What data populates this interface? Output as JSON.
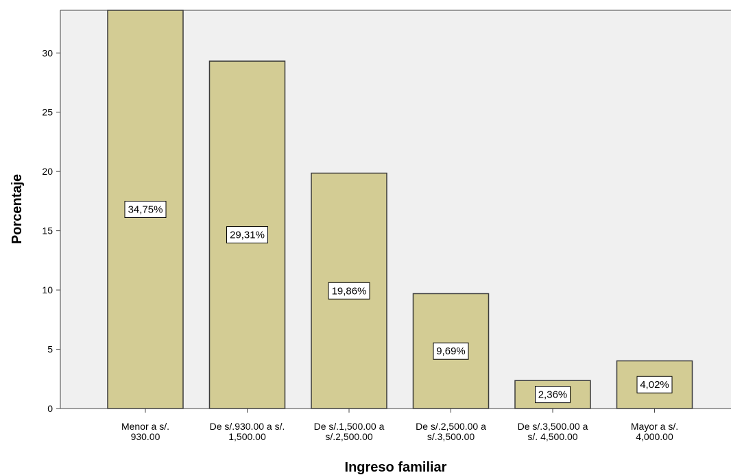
{
  "chart_data": {
    "type": "bar",
    "xlabel": "Ingreso familiar",
    "ylabel": "Porcentaje",
    "categories": [
      [
        "Menor a s/.",
        "930.00"
      ],
      [
        "De s/.930.00 a s/.",
        "1,500.00"
      ],
      [
        "De s/.1,500.00 a",
        "s/.2,500.00"
      ],
      [
        "De s/.2,500.00 a",
        "s/.3,500.00"
      ],
      [
        "De s/.3,500.00 a",
        "s/. 4,500.00"
      ],
      [
        "Mayor a s/.",
        "4,000.00"
      ]
    ],
    "values": [
      34.75,
      29.31,
      19.86,
      9.69,
      2.36,
      4.02
    ],
    "data_labels": [
      "34,75%",
      "29,31%",
      "19,86%",
      "9,69%",
      "2,36%",
      "4,02%"
    ],
    "yticks": [
      0,
      5,
      10,
      15,
      20,
      25,
      30
    ],
    "ylim": [
      0,
      33.6
    ],
    "grid": false,
    "colors": {
      "bar_fill": "#d3cc94",
      "bar_stroke": "#3a3a3a",
      "plot_bg": "#f0f0f0",
      "axis": "#444444"
    }
  }
}
